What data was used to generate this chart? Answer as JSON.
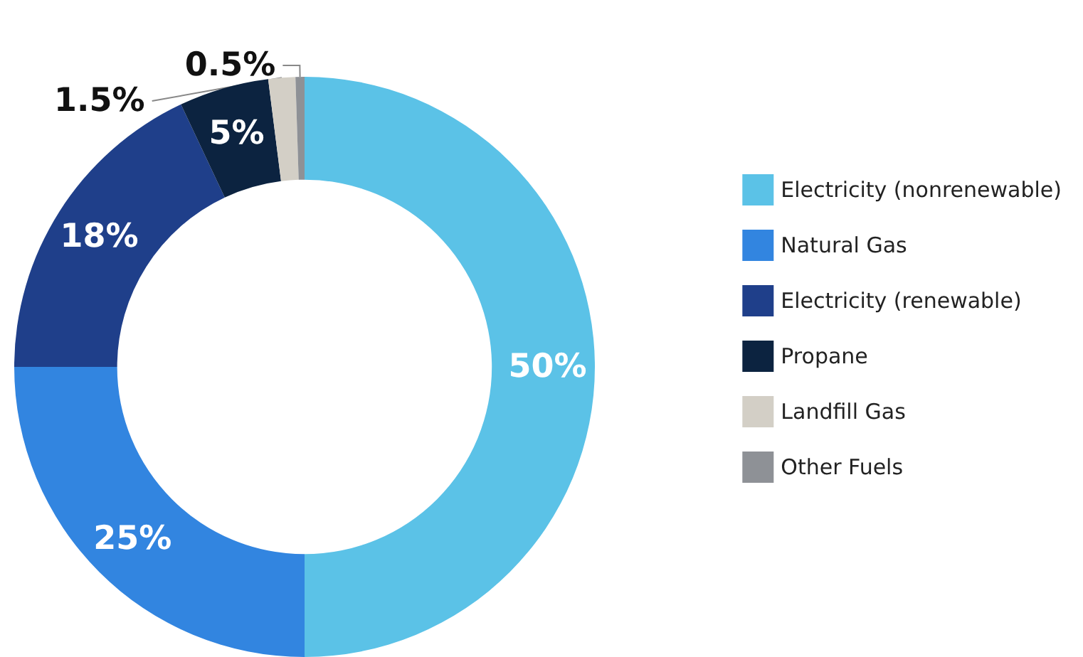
{
  "chart_data": {
    "type": "donut",
    "categories": [
      "Electricity (nonrenewable)",
      "Natural Gas",
      "Electricity (renewable)",
      "Propane",
      "Landfill Gas",
      "Other Fuels"
    ],
    "values": [
      50,
      25,
      18,
      5,
      1.5,
      0.5
    ],
    "colors": [
      "#5bc2e7",
      "#3285e0",
      "#1f3f8a",
      "#0c2340",
      "#d3cfc6",
      "#8e9196"
    ],
    "value_labels": [
      "50%",
      "25%",
      "18%",
      "5%",
      "1.5%",
      "0.5%"
    ],
    "legend": "right"
  }
}
